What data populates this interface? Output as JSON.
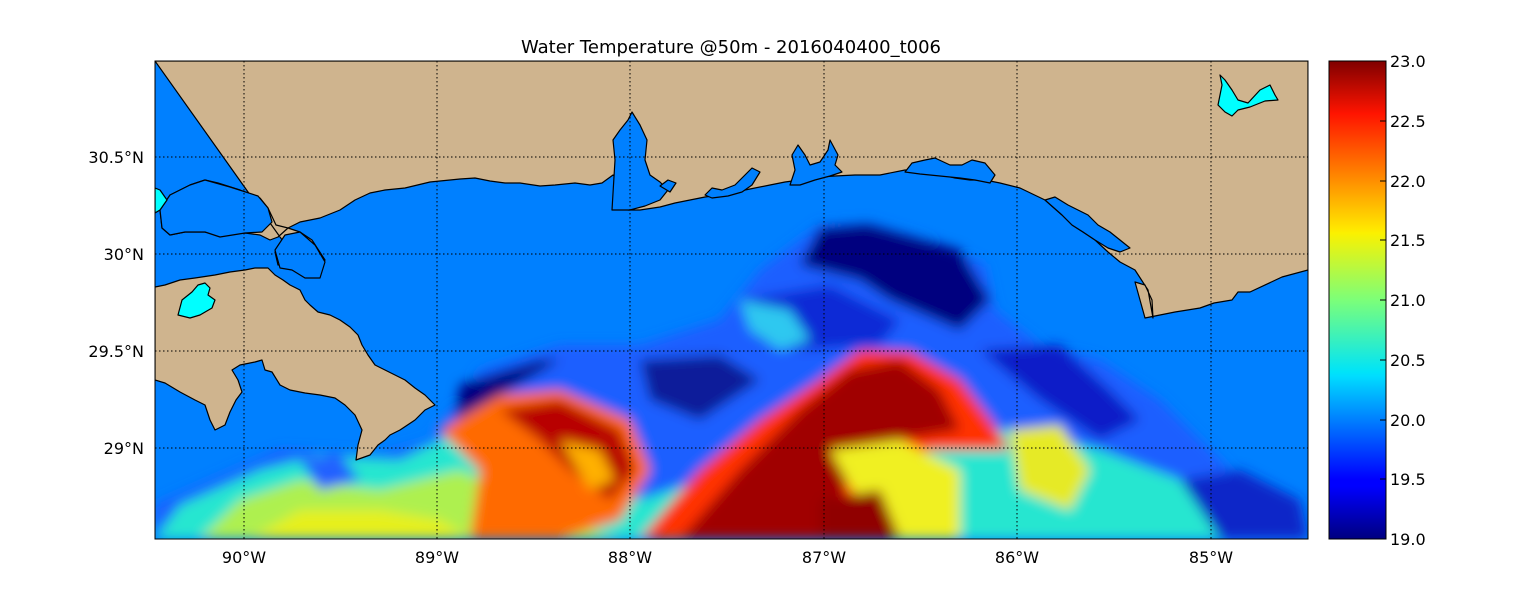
{
  "title": "Water Temperature @50m - 2016040400_t006",
  "map": {
    "lon_range": [
      -90.5,
      -84.5
    ],
    "lat_range": [
      28.55,
      31.0
    ],
    "lon_ticks": [
      {
        "value": -90,
        "label": "90°W"
      },
      {
        "value": -89,
        "label": "89°W"
      },
      {
        "value": -88,
        "label": "88°W"
      },
      {
        "value": -87,
        "label": "87°W"
      },
      {
        "value": -86,
        "label": "86°W"
      },
      {
        "value": -85,
        "label": "85°W"
      }
    ],
    "lat_ticks": [
      {
        "value": 30.5,
        "label": "30.5°N"
      },
      {
        "value": 30.0,
        "label": "30°N"
      },
      {
        "value": 29.5,
        "label": "29.5°N"
      },
      {
        "value": 29.0,
        "label": "29°N"
      }
    ],
    "grid": true,
    "land_color": "#cfb48e",
    "water_color": "#0080ff",
    "lake_color": "#00ffff"
  },
  "colorbar": {
    "min": 19.0,
    "max": 23.0,
    "colormap": "jet",
    "ticks": [
      "19.0",
      "19.5",
      "20.0",
      "20.5",
      "21.0",
      "21.5",
      "22.0",
      "22.5",
      "23.0"
    ]
  }
}
